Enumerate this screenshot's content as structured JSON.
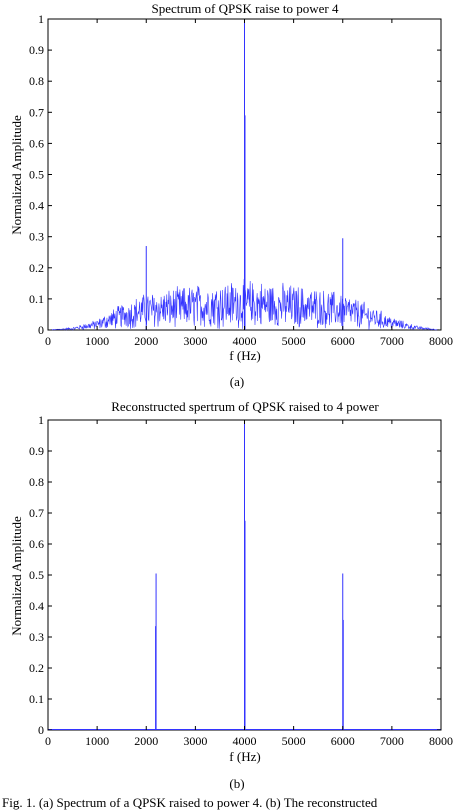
{
  "colors": {
    "series": "#3333ff",
    "axis": "#000000"
  },
  "caption": "Fig. 1.   (a) Spectrum of a QPSK raised to power 4. (b) The reconstructed",
  "chart_data": [
    {
      "type": "line",
      "panel_label": "(a)",
      "title": "Spectrum of QPSK raise to power 4",
      "xlabel": "f (Hz)",
      "ylabel": "Normalized Amplitude",
      "xlim": [
        0,
        8000
      ],
      "ylim": [
        0,
        1
      ],
      "xticks": [
        "0",
        "1000",
        "2000",
        "3000",
        "4000",
        "5000",
        "6000",
        "7000",
        "8000"
      ],
      "yticks": [
        "0",
        "0.1",
        "0.2",
        "0.3",
        "0.4",
        "0.5",
        "0.6",
        "0.7",
        "0.8",
        "0.9",
        "1"
      ],
      "grid": false,
      "spikes": [
        {
          "x": 2000,
          "y": 0.27
        },
        {
          "x": 4000,
          "y": 1.0
        },
        {
          "x": 4010,
          "y": 0.69
        },
        {
          "x": 6000,
          "y": 0.295
        }
      ],
      "noise_envelope": [
        {
          "x": 0,
          "y": 0.0
        },
        {
          "x": 500,
          "y": 0.005
        },
        {
          "x": 1000,
          "y": 0.02
        },
        {
          "x": 1500,
          "y": 0.05
        },
        {
          "x": 2000,
          "y": 0.07
        },
        {
          "x": 3000,
          "y": 0.085
        },
        {
          "x": 4000,
          "y": 0.095
        },
        {
          "x": 5000,
          "y": 0.085
        },
        {
          "x": 6000,
          "y": 0.07
        },
        {
          "x": 6500,
          "y": 0.05
        },
        {
          "x": 7000,
          "y": 0.025
        },
        {
          "x": 7500,
          "y": 0.008
        },
        {
          "x": 8000,
          "y": 0.0
        }
      ]
    },
    {
      "type": "line",
      "panel_label": "(b)",
      "title": "Reconstructed spertrum of QPSK raised to 4 power",
      "xlabel": "f (Hz)",
      "ylabel": "Normalized Amplitude",
      "xlim": [
        0,
        8000
      ],
      "ylim": [
        0,
        1
      ],
      "xticks": [
        "0",
        "1000",
        "2000",
        "3000",
        "4000",
        "5000",
        "6000",
        "7000",
        "8000"
      ],
      "yticks": [
        "0",
        "0.1",
        "0.2",
        "0.3",
        "0.4",
        "0.5",
        "0.6",
        "0.7",
        "0.8",
        "0.9",
        "1"
      ],
      "grid": false,
      "spikes": [
        {
          "x": 2200,
          "y": 0.505
        },
        {
          "x": 2190,
          "y": 0.335
        },
        {
          "x": 4000,
          "y": 1.0
        },
        {
          "x": 4010,
          "y": 0.675
        },
        {
          "x": 6000,
          "y": 0.505
        },
        {
          "x": 6010,
          "y": 0.355
        }
      ]
    }
  ]
}
